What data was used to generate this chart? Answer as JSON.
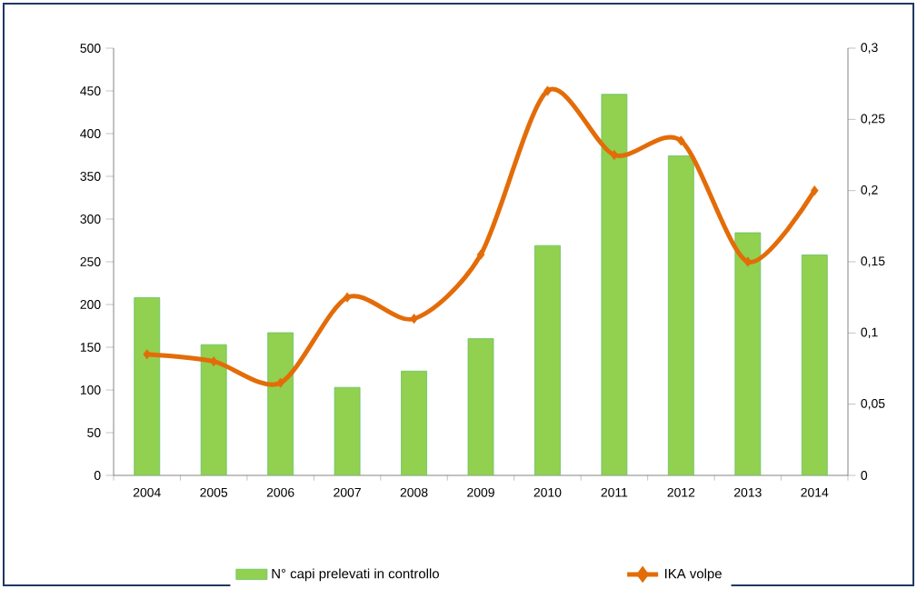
{
  "chart_data": {
    "type": "bar",
    "categories": [
      "2004",
      "2005",
      "2006",
      "2007",
      "2008",
      "2009",
      "2010",
      "2011",
      "2012",
      "2013",
      "2014"
    ],
    "series": [
      {
        "name": "N° capi prelevati in controllo",
        "color": "#92d050",
        "values": [
          208,
          153,
          167,
          103,
          122,
          160,
          269,
          446,
          374,
          284,
          258
        ]
      },
      {
        "name": "IKA volpe",
        "type": "line",
        "axis": "y2",
        "color": "#e36c09",
        "values": [
          0.085,
          0.08,
          0.065,
          0.125,
          0.11,
          0.155,
          0.27,
          0.225,
          0.235,
          0.15,
          0.2
        ]
      }
    ],
    "ylim": [
      0,
      500
    ],
    "yticks": [
      0,
      50,
      100,
      150,
      200,
      250,
      300,
      350,
      400,
      450,
      500
    ],
    "y2lim": [
      0,
      0.3
    ],
    "y2ticks": [
      0,
      {
        "value": 0.05,
        "label": "0,05"
      },
      {
        "value": 0.1,
        "label": "0,1"
      },
      {
        "value": 0.15,
        "label": "0,15"
      },
      {
        "value": 0.2,
        "label": "0,2"
      },
      {
        "value": 0.25,
        "label": "0,25"
      },
      {
        "value": 0.3,
        "label": "0,3"
      }
    ],
    "marker": "diamond",
    "legend": "bottom",
    "grid": false
  }
}
